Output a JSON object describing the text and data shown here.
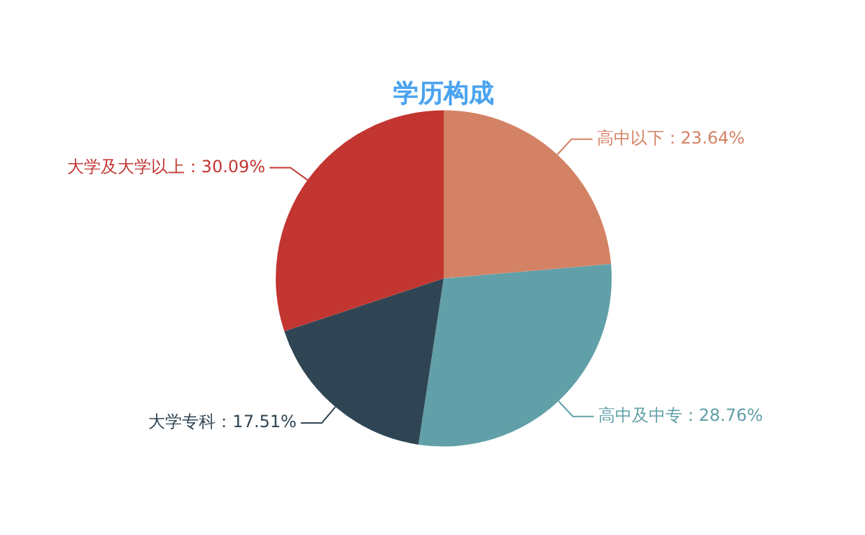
{
  "chart_data": {
    "type": "pie",
    "title": "学历构成",
    "categories": [
      "高中以下",
      "高中及中专",
      "大学专科",
      "大学及大学以上"
    ],
    "values": [
      23.64,
      28.76,
      17.51,
      30.09
    ],
    "colors": [
      "#d48265",
      "#61a0a8",
      "#2f4554",
      "#c23531"
    ],
    "value_labels": [
      "：23.64%",
      "：28.76%",
      "：17.51%",
      "：30.09%"
    ],
    "legend": false
  }
}
